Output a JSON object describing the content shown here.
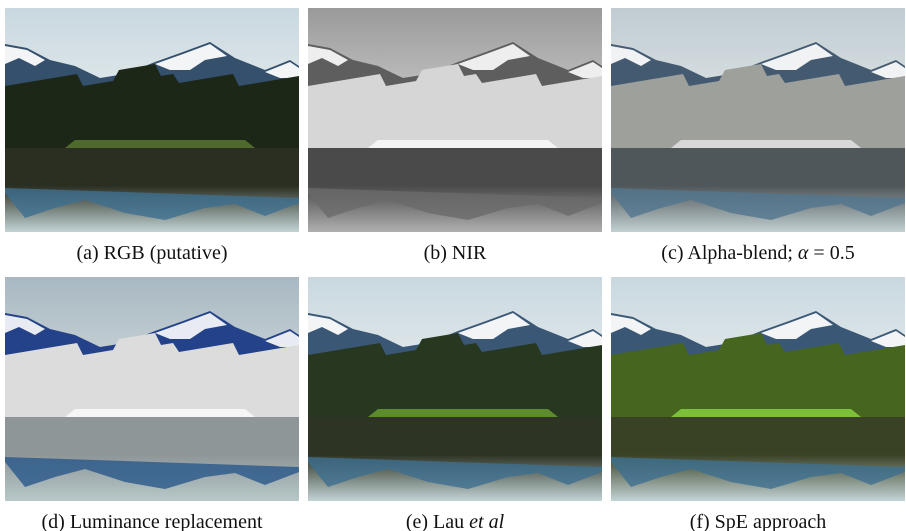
{
  "panels": [
    {
      "caption": [
        {
          "text": "(a) RGB (putative)"
        }
      ]
    },
    {
      "caption": [
        {
          "text": "(b) NIR"
        }
      ]
    },
    {
      "caption": [
        {
          "text": "(c) Alpha-blend; "
        },
        {
          "text": "α",
          "style": "italic"
        },
        {
          "text": " = 0.5"
        }
      ]
    },
    {
      "caption": [
        {
          "text": "(d) Luminance replacement"
        }
      ]
    },
    {
      "caption": [
        {
          "text": "(e) Lau "
        },
        {
          "text": "et al",
          "style": "italic"
        }
      ]
    },
    {
      "caption": [
        {
          "text": "(f) SpE approach"
        }
      ]
    }
  ]
}
